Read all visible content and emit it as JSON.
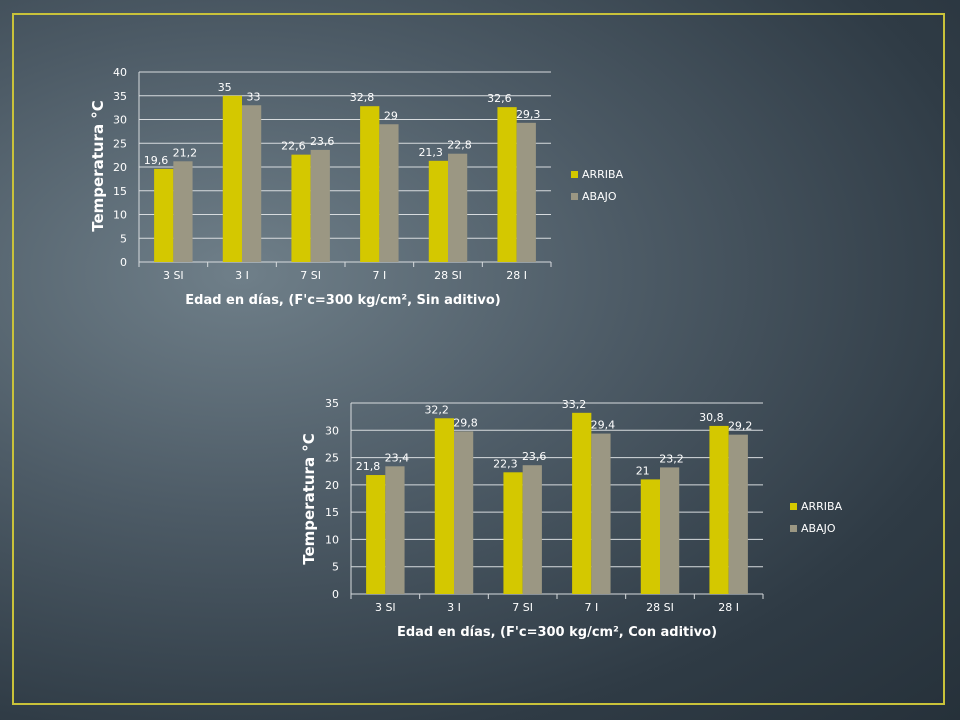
{
  "chart_data": [
    {
      "type": "bar",
      "categories": [
        "3 SI",
        "3 I",
        "7 SI",
        "7 I",
        "28 SI",
        "28 I"
      ],
      "series": [
        {
          "name": "ARRIBA",
          "values": [
            19.6,
            35,
            22.6,
            32.8,
            21.3,
            32.6
          ],
          "labels": [
            "19,6",
            "35",
            "22,6",
            "32,8",
            "21,3",
            "32,6"
          ],
          "color": "#d4c800"
        },
        {
          "name": "ABAJO",
          "values": [
            21.2,
            33,
            23.6,
            29,
            22.8,
            29.3
          ],
          "labels": [
            "21,2",
            "33",
            "23,6",
            "29",
            "22,8",
            "29,3"
          ],
          "color": "#9b9783"
        }
      ],
      "xlabel": "Edad en días, (F'c=300 kg/cm², Sin aditivo)",
      "ylabel": "Temperatura °C",
      "ylim": [
        0,
        40
      ],
      "yticks": [
        0,
        5,
        10,
        15,
        20,
        25,
        30,
        35,
        40
      ],
      "grid": true,
      "legend": "right"
    },
    {
      "type": "bar",
      "categories": [
        "3 SI",
        "3 I",
        "7 SI",
        "7 I",
        "28 SI",
        "28 I"
      ],
      "series": [
        {
          "name": "ARRIBA",
          "values": [
            21.8,
            32.2,
            22.3,
            33.2,
            21,
            30.8
          ],
          "labels": [
            "21,8",
            "32,2",
            "22,3",
            "33,2",
            "21",
            "30,8"
          ],
          "color": "#d4c800"
        },
        {
          "name": "ABAJO",
          "values": [
            23.4,
            29.8,
            23.6,
            29.4,
            23.2,
            29.2
          ],
          "labels": [
            "23,4",
            "29,8",
            "23,6",
            "29,4",
            "23,2",
            "29,2"
          ],
          "color": "#9b9783"
        }
      ],
      "xlabel": "Edad en días, (F'c=300 kg/cm², Con aditivo)",
      "ylabel": "Temperatura °C",
      "ylim": [
        0,
        35
      ],
      "yticks": [
        0,
        5,
        10,
        15,
        20,
        25,
        30,
        35
      ],
      "grid": true,
      "legend": "right"
    }
  ]
}
